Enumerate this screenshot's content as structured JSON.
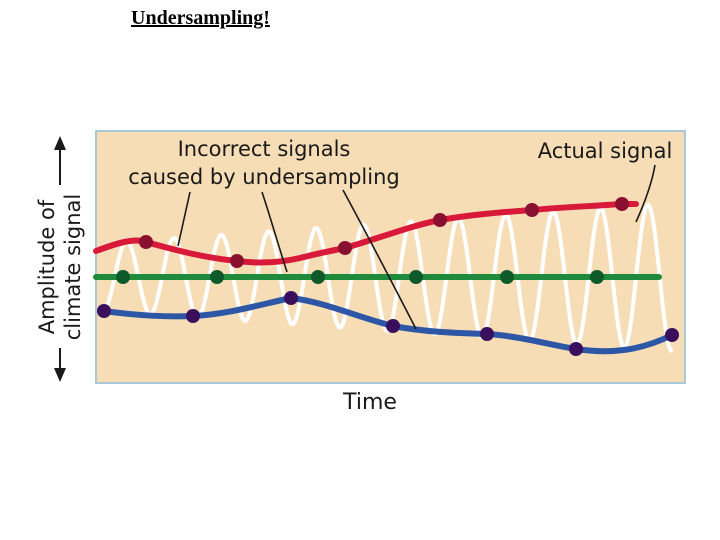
{
  "title": "Undersampling!",
  "figure": {
    "y_axis_label_line1": "Amplitude of",
    "y_axis_label_line2": "climate signal",
    "x_axis_label": "Time",
    "annotation_incorrect_line1": "Incorrect signals",
    "annotation_incorrect_line2": "caused by undersampling",
    "annotation_actual": "Actual signal"
  },
  "colors": {
    "panel_background": "#f6ddb5",
    "panel_border": "#a9c9d9",
    "actual_signal": "#ffffff",
    "aliased_high": "#d8193a",
    "aliased_high_points": "#8a1030",
    "aliased_flat": "#1d8a3c",
    "aliased_flat_points": "#0e5a2a",
    "aliased_low": "#2d57a6",
    "aliased_low_points": "#3a0f5e"
  }
}
